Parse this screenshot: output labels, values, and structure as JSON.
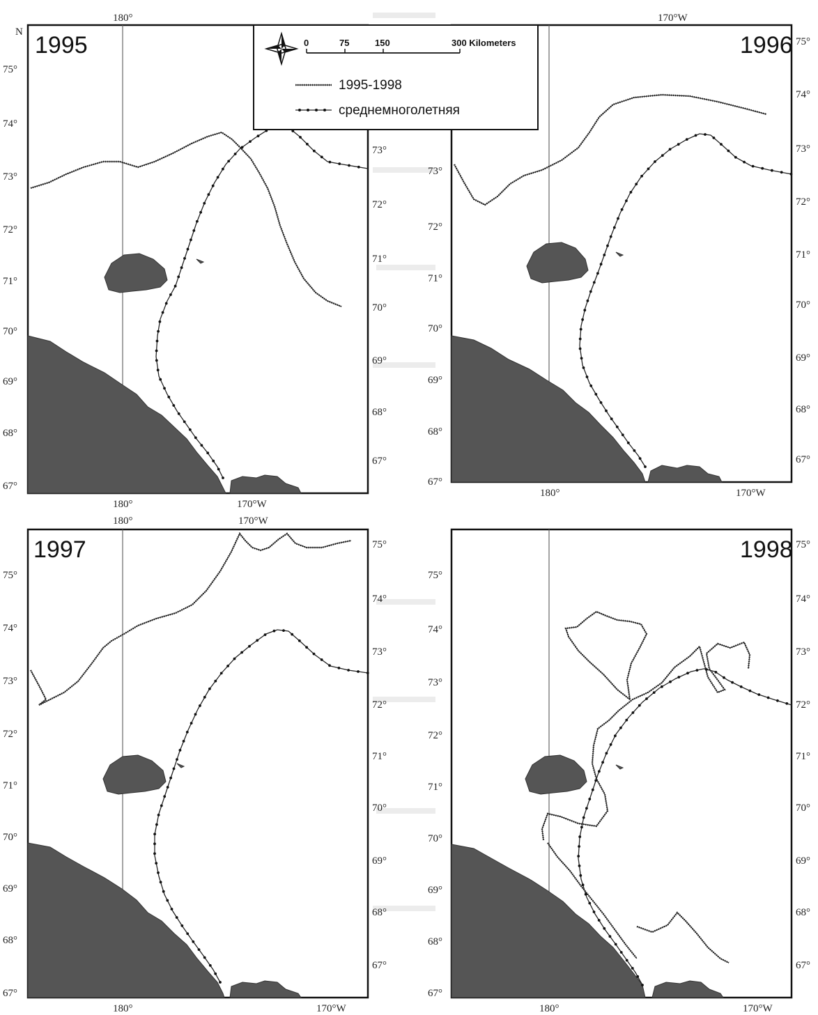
{
  "north_label": "N",
  "panels": [
    {
      "id": "1995",
      "year": "1995"
    },
    {
      "id": "1996",
      "year": "1996"
    },
    {
      "id": "1997",
      "year": "1997"
    },
    {
      "id": "1998",
      "year": "1998"
    }
  ],
  "lon_ticks": {
    "west_of_date_line": "180°",
    "east": "170°W"
  },
  "lat_left": [
    "75°",
    "74°",
    "73°",
    "72°",
    "71°",
    "70°",
    "69°",
    "68°",
    "67°"
  ],
  "lat_right": [
    "75°",
    "74°",
    "73°",
    "72°",
    "71°",
    "70°",
    "69°",
    "68°",
    "67°"
  ],
  "legend": {
    "scale_values": [
      "0",
      "75",
      "150",
      "300 Kilometers"
    ],
    "series": [
      {
        "name": "1995-1998",
        "style": "hatched"
      },
      {
        "name": "среднемноголетняя",
        "style": "dotted-line"
      }
    ],
    "compass_icon": "compass-rose-icon"
  },
  "colors": {
    "land": "#555555",
    "frame": "#111111",
    "line": "#222222"
  }
}
